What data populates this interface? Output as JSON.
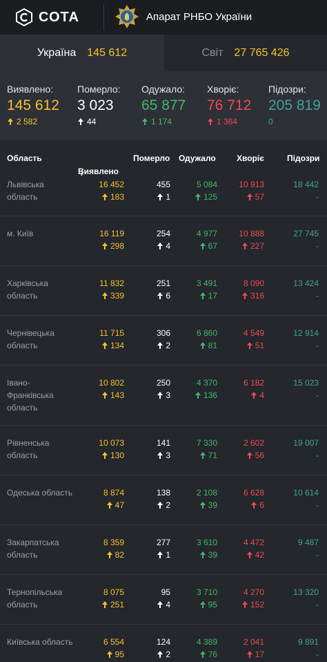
{
  "header": {
    "logo_text": "СОТА",
    "agency": "Апарат РНБО України"
  },
  "tabs": [
    {
      "label": "Україна",
      "value": "145 612"
    },
    {
      "label": "Світ",
      "value": "27 765 426"
    }
  ],
  "summary": [
    {
      "label": "Виявлено:",
      "value": "145 612",
      "delta": "2 582",
      "color": "#f7c22c"
    },
    {
      "label": "Померло:",
      "value": "3 023",
      "delta": "44",
      "color": "#ffffff"
    },
    {
      "label": "Одужало:",
      "value": "65 877",
      "delta": "1 174",
      "color": "#43b86b"
    },
    {
      "label": "Хворіє:",
      "value": "76 712",
      "delta": "1 364",
      "color": "#ef4a55"
    },
    {
      "label": "Підозри:",
      "value": "205 819",
      "delta": "0",
      "color": "#3fa596"
    }
  ],
  "table": {
    "headers": {
      "region": "Область",
      "confirmed": "Виявлено",
      "deaths": "Померло",
      "recovered": "Одужало",
      "sick": "Хворіє",
      "suspected": "Підозри"
    },
    "rows": [
      {
        "region": "Львівська область",
        "confirmed": "16 452",
        "confirmed_d": "183",
        "deaths": "455",
        "deaths_d": "1",
        "recovered": "5 084",
        "recovered_d": "125",
        "sick": "10 913",
        "sick_d": "57",
        "suspected": "18 442",
        "suspected_d": "-"
      },
      {
        "region": "м. Київ",
        "confirmed": "16 119",
        "confirmed_d": "298",
        "deaths": "254",
        "deaths_d": "4",
        "recovered": "4 977",
        "recovered_d": "67",
        "sick": "10 888",
        "sick_d": "227",
        "suspected": "27 745",
        "suspected_d": "-"
      },
      {
        "region": "Харківська область",
        "confirmed": "11 832",
        "confirmed_d": "339",
        "deaths": "251",
        "deaths_d": "6",
        "recovered": "3 491",
        "recovered_d": "17",
        "sick": "8 090",
        "sick_d": "316",
        "suspected": "13 424",
        "suspected_d": "-"
      },
      {
        "region": "Чернівецька область",
        "confirmed": "11 715",
        "confirmed_d": "134",
        "deaths": "306",
        "deaths_d": "2",
        "recovered": "6 860",
        "recovered_d": "81",
        "sick": "4 549",
        "sick_d": "51",
        "suspected": "12 914",
        "suspected_d": "-"
      },
      {
        "region": "Івано-Франківська область",
        "confirmed": "10 802",
        "confirmed_d": "143",
        "deaths": "250",
        "deaths_d": "3",
        "recovered": "4 370",
        "recovered_d": "136",
        "sick": "6 182",
        "sick_d": "4",
        "suspected": "15 023",
        "suspected_d": "-"
      },
      {
        "region": "Рівненська область",
        "confirmed": "10 073",
        "confirmed_d": "130",
        "deaths": "141",
        "deaths_d": "3",
        "recovered": "7 330",
        "recovered_d": "71",
        "sick": "2 602",
        "sick_d": "56",
        "suspected": "19 007",
        "suspected_d": "-"
      },
      {
        "region": "Одеська область",
        "confirmed": "8 874",
        "confirmed_d": "47",
        "deaths": "138",
        "deaths_d": "2",
        "recovered": "2 108",
        "recovered_d": "39",
        "sick": "6 628",
        "sick_d": "6",
        "suspected": "10 614",
        "suspected_d": "-"
      },
      {
        "region": "Закарпатська область",
        "confirmed": "8 359",
        "confirmed_d": "82",
        "deaths": "277",
        "deaths_d": "1",
        "recovered": "3 610",
        "recovered_d": "39",
        "sick": "4 472",
        "sick_d": "42",
        "suspected": "9 487",
        "suspected_d": "-"
      },
      {
        "region": "Тернопільська область",
        "confirmed": "8 075",
        "confirmed_d": "251",
        "deaths": "95",
        "deaths_d": "4",
        "recovered": "3 710",
        "recovered_d": "95",
        "sick": "4 270",
        "sick_d": "152",
        "suspected": "13 320",
        "suspected_d": "-"
      },
      {
        "region": "Київська область",
        "confirmed": "6 554",
        "confirmed_d": "95",
        "deaths": "124",
        "deaths_d": "2",
        "recovered": "4 389",
        "recovered_d": "76",
        "sick": "2 041",
        "sick_d": "17",
        "suspected": "9 891",
        "suspected_d": "-"
      }
    ]
  }
}
